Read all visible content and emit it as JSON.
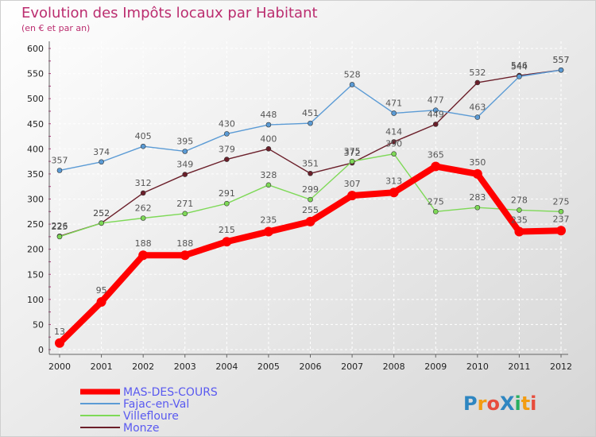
{
  "chart_data": {
    "type": "line",
    "title": "Evolution des Impôts locaux par Habitant",
    "subtitle": "(en € et par an)",
    "xlabel": "",
    "ylabel": "",
    "x": [
      "2000",
      "2001",
      "2002",
      "2003",
      "2004",
      "2005",
      "2006",
      "2007",
      "2008",
      "2009",
      "2010",
      "2011",
      "2012"
    ],
    "ylim": [
      0,
      600
    ],
    "yticks": [
      "0",
      "50",
      "100",
      "150",
      "200",
      "250",
      "300",
      "350",
      "400",
      "450",
      "500",
      "550",
      "600"
    ],
    "grid": true,
    "legend_position": "bottom-left",
    "series": [
      {
        "name": "MAS-DES-COURS",
        "color": "#ff0000",
        "values": [
          13,
          95,
          188,
          188,
          215,
          235,
          255,
          307,
          313,
          365,
          350,
          235,
          237
        ]
      },
      {
        "name": "Fajac-en-Val",
        "color": "#5b9bd5",
        "values": [
          357,
          374,
          405,
          395,
          430,
          448,
          451,
          528,
          471,
          477,
          463,
          544,
          557
        ]
      },
      {
        "name": "Villefloure",
        "color": "#7ed957",
        "values": [
          225,
          252,
          262,
          271,
          291,
          328,
          299,
          375,
          390,
          275,
          283,
          278,
          275
        ]
      },
      {
        "name": "Monze",
        "color": "#6b1f2a",
        "values": [
          226,
          252,
          312,
          349,
          379,
          400,
          351,
          372,
          414,
          449,
          532,
          546,
          557
        ]
      }
    ]
  },
  "logo": {
    "text": "ProXiti",
    "colors": [
      "#2e86c1",
      "#f39c12",
      "#e74c3c",
      "#2e86c1",
      "#27ae60",
      "#f39c12",
      "#e74c3c"
    ]
  }
}
